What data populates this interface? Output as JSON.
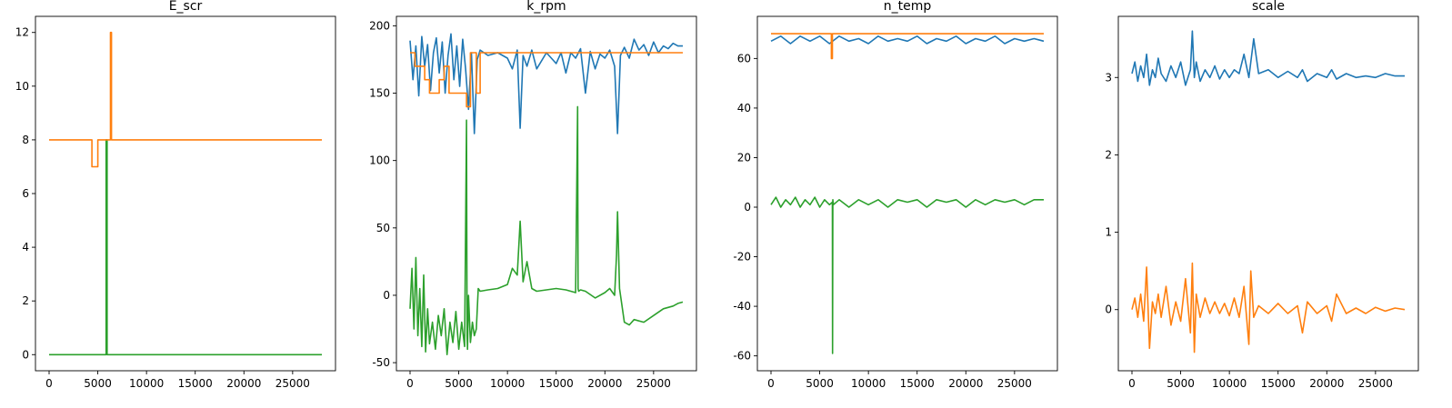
{
  "chart_data": [
    {
      "type": "line",
      "title": "E_scr",
      "xlim": [
        -1400,
        29400
      ],
      "ylim": [
        -0.6,
        12.6
      ],
      "xticks": [
        0,
        5000,
        10000,
        15000,
        20000,
        25000
      ],
      "yticks": [
        0,
        2,
        4,
        6,
        8,
        10,
        12
      ],
      "series": [
        {
          "color": "#2ca02c",
          "x": [
            0,
            5850,
            5850,
            5950,
            5950,
            28000
          ],
          "y": [
            0,
            0,
            8,
            8,
            0,
            0
          ]
        },
        {
          "color": "#ff7f0e",
          "x": [
            0,
            4400,
            4400,
            5000,
            5000,
            6300,
            6300,
            6400,
            6400,
            28000
          ],
          "y": [
            8,
            8,
            7,
            7,
            8,
            8,
            12,
            12,
            8,
            8
          ]
        }
      ]
    },
    {
      "type": "line",
      "title": "k_rpm",
      "xlim": [
        -1400,
        29400
      ],
      "ylim": [
        -56,
        207
      ],
      "xticks": [
        0,
        5000,
        10000,
        15000,
        20000,
        25000
      ],
      "yticks": [
        -50,
        0,
        50,
        100,
        150,
        200
      ],
      "series": [
        {
          "color": "#1f77b4",
          "x": [
            0,
            300,
            600,
            900,
            1200,
            1500,
            1800,
            2100,
            2400,
            2700,
            3000,
            3300,
            3600,
            3900,
            4200,
            4500,
            4800,
            5100,
            5400,
            5700,
            6000,
            6300,
            6600,
            6900,
            7200,
            8000,
            9000,
            10000,
            10500,
            11000,
            11300,
            11600,
            12000,
            12500,
            13000,
            14000,
            15000,
            15500,
            16000,
            16500,
            17000,
            17500,
            18000,
            18500,
            19000,
            19500,
            20000,
            20500,
            21000,
            21300,
            21600,
            22000,
            22500,
            23000,
            23500,
            24000,
            24500,
            25000,
            25500,
            26000,
            26500,
            27000,
            27500,
            28000
          ],
          "y": [
            189,
            160,
            185,
            148,
            192,
            170,
            186,
            152,
            180,
            191,
            165,
            188,
            150,
            178,
            194,
            160,
            185,
            155,
            190,
            168,
            138,
            180,
            120,
            175,
            182,
            178,
            180,
            176,
            168,
            182,
            124,
            178,
            170,
            182,
            168,
            180,
            172,
            180,
            165,
            180,
            176,
            183,
            150,
            181,
            168,
            179,
            176,
            182,
            170,
            120,
            178,
            184,
            176,
            190,
            182,
            186,
            178,
            188,
            180,
            185,
            183,
            187,
            185,
            185
          ]
        },
        {
          "color": "#ff7f0e",
          "x": [
            0,
            500,
            500,
            1500,
            1500,
            2000,
            2000,
            3000,
            3000,
            3500,
            3500,
            4000,
            4000,
            5800,
            5800,
            6200,
            6200,
            6800,
            6800,
            7200,
            7200,
            28000
          ],
          "y": [
            180,
            180,
            170,
            170,
            160,
            160,
            150,
            150,
            160,
            160,
            170,
            170,
            150,
            150,
            140,
            140,
            180,
            180,
            150,
            150,
            180,
            180
          ]
        },
        {
          "color": "#2ca02c",
          "x": [
            0,
            200,
            400,
            600,
            800,
            1000,
            1200,
            1400,
            1600,
            1800,
            2000,
            2300,
            2600,
            2900,
            3200,
            3500,
            3800,
            4100,
            4400,
            4700,
            5000,
            5300,
            5600,
            5800,
            5850,
            5900,
            6000,
            6200,
            6400,
            6600,
            6800,
            7000,
            7200,
            8000,
            9000,
            10000,
            10500,
            11000,
            11300,
            11600,
            12000,
            12500,
            13000,
            14000,
            15000,
            16000,
            17000,
            17200,
            17250,
            17300,
            17500,
            18000,
            19000,
            20000,
            20500,
            21000,
            21200,
            21300,
            21500,
            22000,
            22500,
            23000,
            24000,
            25000,
            26000,
            27000,
            27500,
            28000
          ],
          "y": [
            -10,
            20,
            -25,
            28,
            -30,
            5,
            -38,
            15,
            -42,
            -10,
            -36,
            -20,
            -40,
            -15,
            -30,
            -10,
            -44,
            -20,
            -35,
            -12,
            -40,
            -20,
            -38,
            130,
            -30,
            -40,
            0,
            -35,
            -20,
            -30,
            -25,
            5,
            3,
            4,
            5,
            8,
            20,
            15,
            55,
            10,
            25,
            5,
            3,
            4,
            5,
            4,
            2,
            140,
            5,
            3,
            4,
            3,
            -2,
            2,
            5,
            0,
            30,
            62,
            5,
            -20,
            -22,
            -18,
            -20,
            -15,
            -10,
            -8,
            -6,
            -5
          ]
        }
      ]
    },
    {
      "type": "line",
      "title": "n_temp",
      "xlim": [
        -1400,
        29400
      ],
      "ylim": [
        -66,
        77
      ],
      "xticks": [
        0,
        5000,
        10000,
        15000,
        20000,
        25000
      ],
      "yticks": [
        -60,
        -40,
        -20,
        0,
        20,
        40,
        60
      ],
      "series": [
        {
          "color": "#2ca02c",
          "x": [
            0,
            500,
            1000,
            1500,
            2000,
            2500,
            3000,
            3500,
            4000,
            4500,
            5000,
            5500,
            6000,
            6300,
            6320,
            6350,
            6400,
            7000,
            8000,
            9000,
            10000,
            11000,
            12000,
            13000,
            14000,
            15000,
            16000,
            17000,
            18000,
            19000,
            20000,
            21000,
            22000,
            23000,
            24000,
            25000,
            26000,
            27000,
            28000
          ],
          "y": [
            1,
            4,
            0,
            3,
            1,
            4,
            0,
            3,
            1,
            4,
            0,
            3,
            1,
            2,
            -59,
            3,
            1,
            3,
            0,
            3,
            1,
            3,
            0,
            3,
            2,
            3,
            0,
            3,
            2,
            3,
            0,
            3,
            1,
            3,
            2,
            3,
            1,
            3,
            3
          ]
        },
        {
          "color": "#1f77b4",
          "x": [
            0,
            1000,
            2000,
            3000,
            4000,
            5000,
            6000,
            7000,
            8000,
            9000,
            10000,
            11000,
            12000,
            13000,
            14000,
            15000,
            16000,
            17000,
            18000,
            19000,
            20000,
            21000,
            22000,
            23000,
            24000,
            25000,
            26000,
            27000,
            28000
          ],
          "y": [
            67,
            69,
            66,
            69,
            67,
            69,
            66,
            69,
            67,
            68,
            66,
            69,
            67,
            68,
            67,
            69,
            66,
            68,
            67,
            69,
            66,
            68,
            67,
            69,
            66,
            68,
            67,
            68,
            67
          ]
        },
        {
          "color": "#ff7f0e",
          "x": [
            0,
            6200,
            6200,
            6300,
            6300,
            28000
          ],
          "y": [
            70,
            70,
            60,
            60,
            70,
            70
          ]
        }
      ]
    },
    {
      "type": "line",
      "title": "scale",
      "xlim": [
        -1400,
        29400
      ],
      "ylim": [
        -0.79,
        3.79
      ],
      "xticks": [
        0,
        5000,
        10000,
        15000,
        20000,
        25000
      ],
      "yticks": [
        0,
        1,
        2,
        3
      ],
      "series": [
        {
          "color": "#1f77b4",
          "x": [
            0,
            300,
            600,
            900,
            1200,
            1500,
            1800,
            2100,
            2400,
            2700,
            3000,
            3500,
            4000,
            4500,
            5000,
            5500,
            6000,
            6200,
            6400,
            6600,
            7000,
            7500,
            8000,
            8500,
            9000,
            9500,
            10000,
            10500,
            11000,
            11500,
            12000,
            12500,
            13000,
            14000,
            15000,
            16000,
            17000,
            17500,
            18000,
            19000,
            20000,
            20500,
            21000,
            22000,
            23000,
            24000,
            25000,
            26000,
            27000,
            28000
          ],
          "y": [
            3.05,
            3.2,
            2.95,
            3.15,
            3.0,
            3.3,
            2.9,
            3.1,
            3.0,
            3.25,
            3.05,
            2.95,
            3.15,
            3.0,
            3.2,
            2.9,
            3.1,
            3.6,
            3.0,
            3.2,
            2.95,
            3.1,
            3.0,
            3.15,
            2.98,
            3.1,
            3.0,
            3.1,
            3.05,
            3.3,
            3.0,
            3.5,
            3.05,
            3.1,
            3.0,
            3.08,
            3.0,
            3.1,
            2.95,
            3.05,
            3.0,
            3.1,
            2.98,
            3.05,
            3.0,
            3.02,
            3.0,
            3.05,
            3.02,
            3.02
          ]
        },
        {
          "color": "#ff7f0e",
          "x": [
            0,
            300,
            600,
            900,
            1200,
            1500,
            1800,
            2100,
            2400,
            2700,
            3000,
            3500,
            4000,
            4500,
            5000,
            5500,
            6000,
            6200,
            6400,
            6600,
            7000,
            7500,
            8000,
            8500,
            9000,
            9500,
            10000,
            10500,
            11000,
            11500,
            12000,
            12200,
            12500,
            13000,
            14000,
            15000,
            16000,
            17000,
            17500,
            18000,
            19000,
            20000,
            20500,
            21000,
            22000,
            23000,
            24000,
            25000,
            26000,
            27000,
            28000
          ],
          "y": [
            0.0,
            0.15,
            -0.1,
            0.2,
            -0.15,
            0.55,
            -0.5,
            0.1,
            -0.05,
            0.2,
            -0.1,
            0.3,
            -0.2,
            0.1,
            -0.15,
            0.4,
            -0.3,
            0.6,
            -0.55,
            0.2,
            -0.1,
            0.15,
            -0.05,
            0.1,
            -0.05,
            0.08,
            -0.08,
            0.15,
            -0.1,
            0.3,
            -0.45,
            0.5,
            -0.1,
            0.05,
            -0.05,
            0.08,
            -0.05,
            0.05,
            -0.3,
            0.1,
            -0.05,
            0.05,
            -0.15,
            0.2,
            -0.05,
            0.02,
            -0.05,
            0.03,
            -0.02,
            0.02,
            0.0
          ]
        }
      ]
    }
  ]
}
